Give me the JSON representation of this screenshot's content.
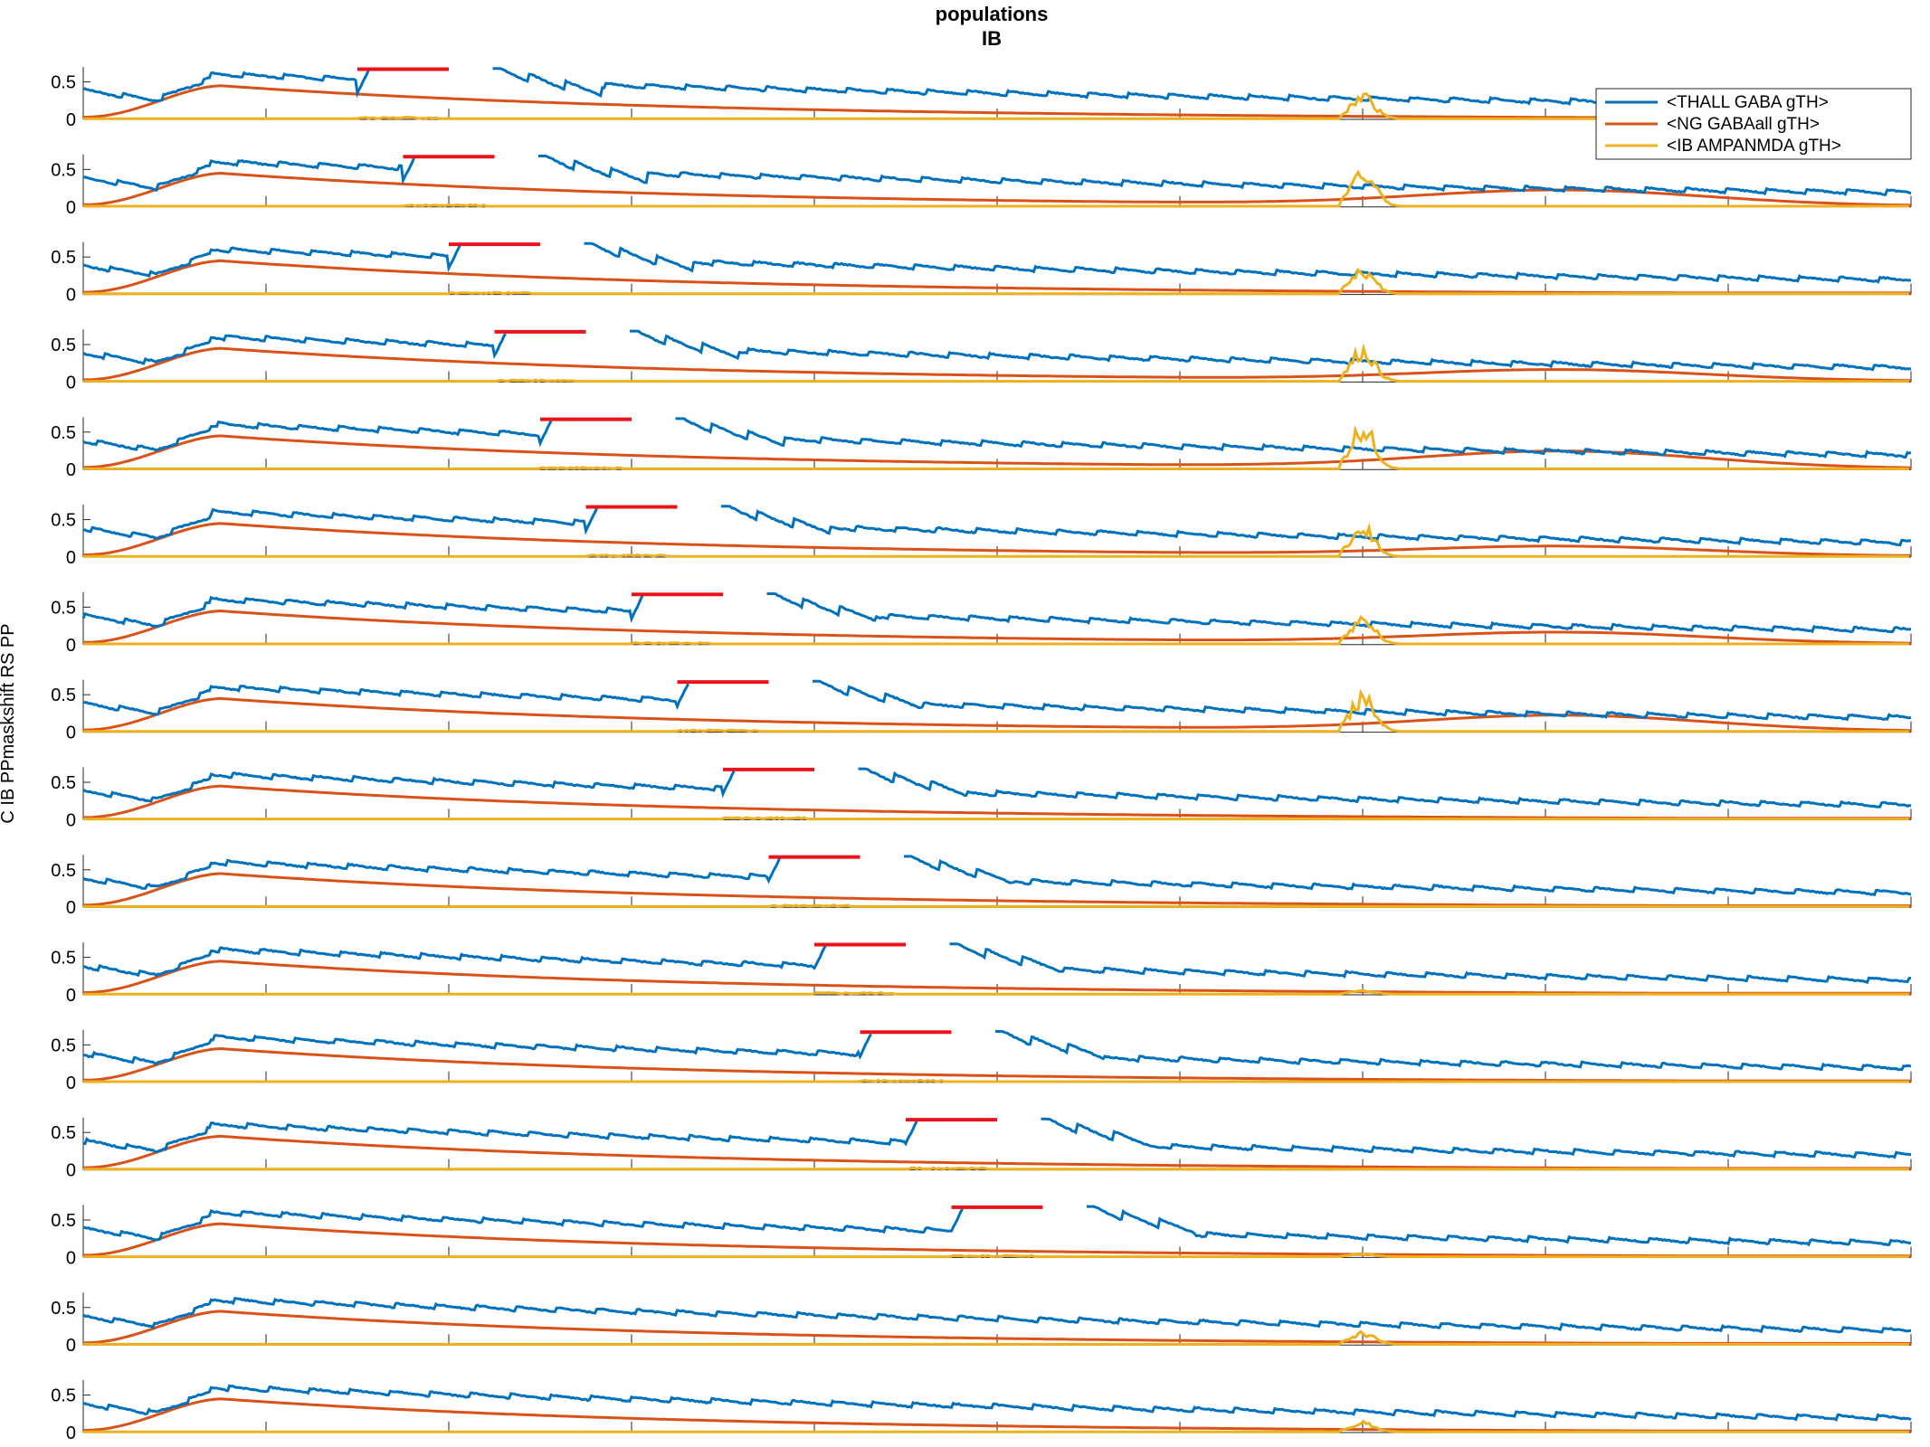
{
  "chart_data": {
    "type": "line",
    "title": "populations",
    "subtitle": "IB",
    "ylabel": "C IB PPmaskshift RS PP",
    "xlim": [
      0,
      2000
    ],
    "ylim": [
      0,
      0.7
    ],
    "x_ticks": [
      0,
      200,
      400,
      600,
      800,
      1000,
      1200,
      1400,
      1600,
      1800,
      2000
    ],
    "y_ticks": [
      0,
      0.5
    ],
    "legend": {
      "position": "top-right",
      "entries": [
        "<THALL GABA gTH>",
        "<NG GABAall gTH>",
        "<IB AMPANMDA gTH>"
      ]
    },
    "colors": {
      "thall": "#0072BD",
      "ng": "#D95319",
      "ib": "#EDB120",
      "stim": "#E8141C",
      "axis": "#262626"
    },
    "series": [
      {
        "name": "<THALL GABA gTH>",
        "description": "thalamic GABA conductance, sawtooth ~0.1-0.6"
      },
      {
        "name": "<NG GABAall gTH>",
        "description": "slow GABA conductance, peak ~0.45 at 150 ms"
      },
      {
        "name": "<IB AMPANMDA gTH>",
        "description": "AMPA/NMDA conductance, bursts near 1400 ms"
      }
    ],
    "panels": [
      {
        "stim_start": 300,
        "stim_end": 400,
        "burst_amp": 0.35,
        "ng_late": 0.0
      },
      {
        "stim_start": 350,
        "stim_end": 450,
        "burst_amp": 0.62,
        "ng_late": 0.2
      },
      {
        "stim_start": 400,
        "stim_end": 500,
        "burst_amp": 0.38,
        "ng_late": 0.0
      },
      {
        "stim_start": 450,
        "stim_end": 550,
        "burst_amp": 0.5,
        "ng_late": 0.14
      },
      {
        "stim_start": 500,
        "stim_end": 600,
        "burst_amp": 0.68,
        "ng_late": 0.22
      },
      {
        "stim_start": 550,
        "stim_end": 650,
        "burst_amp": 0.45,
        "ng_late": 0.12
      },
      {
        "stim_start": 600,
        "stim_end": 700,
        "burst_amp": 0.4,
        "ng_late": 0.14
      },
      {
        "stim_start": 650,
        "stim_end": 750,
        "burst_amp": 0.55,
        "ng_late": 0.2
      },
      {
        "stim_start": 700,
        "stim_end": 800,
        "burst_amp": 0.0,
        "ng_late": 0.0
      },
      {
        "stim_start": 750,
        "stim_end": 850,
        "burst_amp": 0.0,
        "ng_late": 0.0
      },
      {
        "stim_start": 800,
        "stim_end": 900,
        "burst_amp": 0.05,
        "ng_late": 0.0
      },
      {
        "stim_start": 850,
        "stim_end": 950,
        "burst_amp": 0.0,
        "ng_late": 0.0
      },
      {
        "stim_start": 900,
        "stim_end": 1000,
        "burst_amp": 0.0,
        "ng_late": 0.0
      },
      {
        "stim_start": 950,
        "stim_end": 1050,
        "burst_amp": 0.05,
        "ng_late": 0.0
      },
      {
        "stim_start": null,
        "stim_end": null,
        "burst_amp": 0.18,
        "ng_late": 0.0
      },
      {
        "stim_start": null,
        "stim_end": null,
        "burst_amp": 0.15,
        "ng_late": 0.0
      }
    ]
  }
}
